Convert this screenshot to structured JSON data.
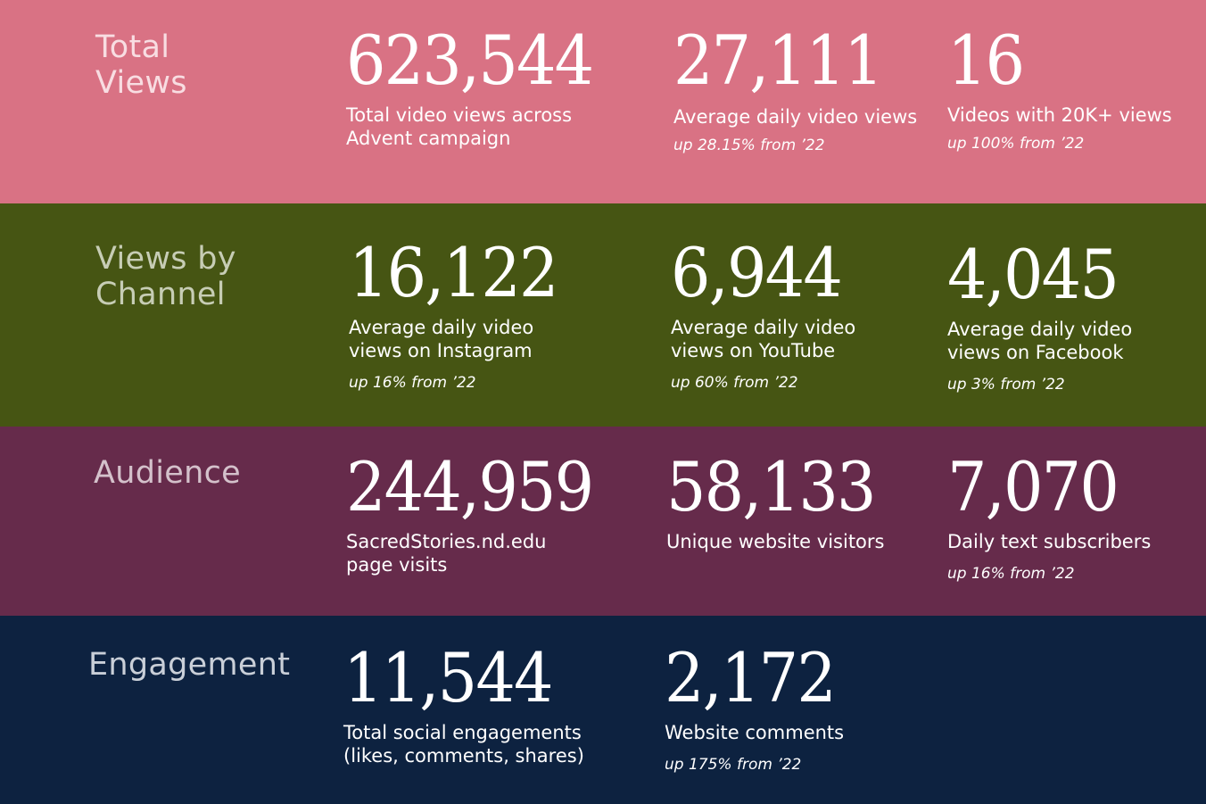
{
  "colors": {
    "total_views_bg": "#d97284",
    "total_views_label": "#f8dde2",
    "views_by_channel_bg": "#465513",
    "views_by_channel_label": "#c7cdb5",
    "audience_bg": "#662b4b",
    "audience_label": "#d4c1cb",
    "engagement_bg": "#0d2240",
    "engagement_label": "#c9cfd8"
  },
  "total_views": {
    "label": "Total\nViews",
    "stats": [
      {
        "value": "623,544",
        "description": "Total video views across\nAdvent campaign",
        "change": ""
      },
      {
        "value": "27,111",
        "description": "Average daily video views",
        "change": "up 28.15% from ’22"
      },
      {
        "value": "16",
        "description": "Videos with 20K+ views",
        "change": "up 100% from ’22"
      }
    ]
  },
  "views_by_channel": {
    "label": "Views by\nChannel",
    "stats": [
      {
        "value": "16,122",
        "description": "Average daily video\nviews on Instagram",
        "change": "up 16% from ’22"
      },
      {
        "value": "6,944",
        "description": "Average daily video\nviews on YouTube",
        "change": "up 60% from ’22"
      },
      {
        "value": "4,045",
        "description": "Average daily video\nviews on Facebook",
        "change": "up 3% from ’22"
      }
    ]
  },
  "audience": {
    "label": "Audience",
    "stats": [
      {
        "value": "244,959",
        "description": "SacredStories.nd.edu\npage visits",
        "change": ""
      },
      {
        "value": "58,133",
        "description": "Unique website visitors",
        "change": ""
      },
      {
        "value": "7,070",
        "description": "Daily text subscribers",
        "change": "up 16% from ’22"
      }
    ]
  },
  "engagement": {
    "label": "Engagement",
    "stats": [
      {
        "value": "11,544",
        "description": "Total social engagements\n(likes, comments, shares)",
        "change": ""
      },
      {
        "value": "2,172",
        "description": "Website comments",
        "change": "up 175% from ’22"
      }
    ]
  }
}
